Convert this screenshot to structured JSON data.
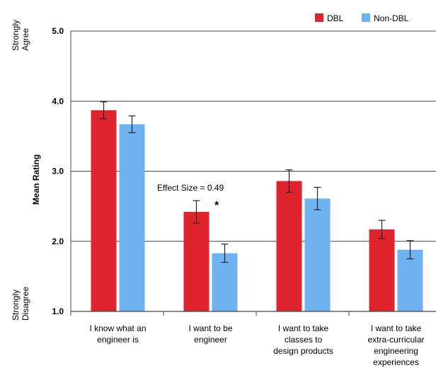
{
  "chart_data": {
    "type": "bar",
    "title": "",
    "xlabel": "",
    "ylabel": "Mean Rating",
    "ylim": [
      1.0,
      5.0
    ],
    "yticks": [
      "5.0",
      "4.0",
      "3.0",
      "2.0",
      "1.0"
    ],
    "ytick_values": [
      5.0,
      4.0,
      3.0,
      2.0,
      1.0
    ],
    "y_anchor_top": "Strongly Agree",
    "y_anchor_bottom": "Strongly Disagree",
    "categories": [
      [
        "I know what an",
        "engineer is"
      ],
      [
        "I want to be",
        "engineer"
      ],
      [
        "I want to take",
        "classes to",
        "design products"
      ],
      [
        "I want to take",
        "extra-curricular",
        "engineering",
        "experiences"
      ]
    ],
    "series": [
      {
        "name": "DBL",
        "color": "#e0242d",
        "values": [
          3.87,
          2.42,
          2.86,
          2.17
        ],
        "errors": [
          0.12,
          0.16,
          0.16,
          0.13
        ]
      },
      {
        "name": "Non-DBL",
        "color": "#6fb2f0",
        "values": [
          3.67,
          1.83,
          2.61,
          1.88
        ],
        "errors": [
          0.12,
          0.13,
          0.16,
          0.13
        ]
      }
    ],
    "grid": true,
    "legend": "top-right",
    "annotations": {
      "effect_size": "Effect Size = 0.49",
      "significance": "*"
    }
  }
}
